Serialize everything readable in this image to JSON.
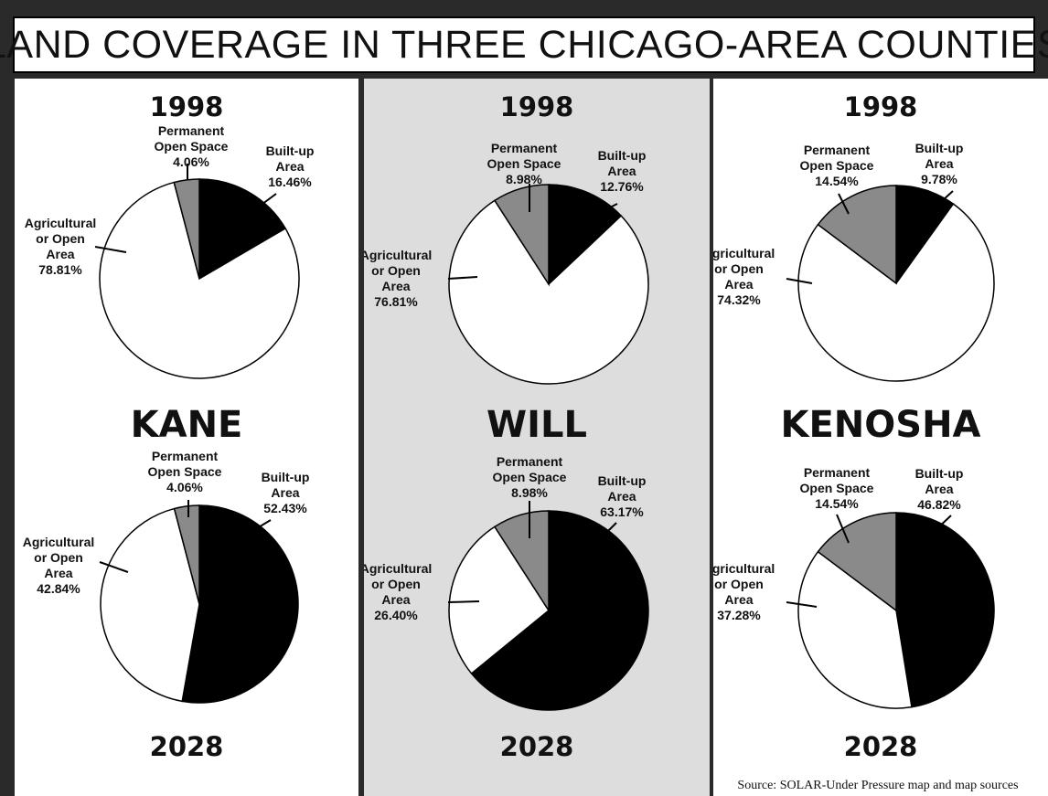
{
  "title": "LAND COVERAGE IN THREE CHICAGO-AREA COUNTIES",
  "source": "Source: SOLAR-Under Pressure map and map sources",
  "colors": {
    "built_up": "#000000",
    "agricultural": "#ffffff",
    "open_space": "#8a8a8a"
  },
  "chart_data": [
    {
      "type": "pie",
      "county": "KANE",
      "year": "1998",
      "labels": [
        "Built-up Area",
        "Agricultural or Open Area",
        "Permanent Open Space"
      ],
      "values": [
        16.46,
        78.81,
        4.06
      ],
      "value_labels": [
        "16.46%",
        "78.81%",
        "4.06%"
      ]
    },
    {
      "type": "pie",
      "county": "KANE",
      "year": "2028",
      "labels": [
        "Built-up Area",
        "Agricultural or Open Area",
        "Permanent Open Space"
      ],
      "values": [
        52.43,
        42.84,
        4.06
      ],
      "value_labels": [
        "52.43%",
        "42.84%",
        "4.06%"
      ]
    },
    {
      "type": "pie",
      "county": "WILL",
      "year": "1998",
      "labels": [
        "Built-up Area",
        "Agricultural or Open Area",
        "Permanent Open Space"
      ],
      "values": [
        12.76,
        76.81,
        8.98
      ],
      "value_labels": [
        "12.76%",
        "76.81%",
        "8.98%"
      ]
    },
    {
      "type": "pie",
      "county": "WILL",
      "year": "2028",
      "labels": [
        "Built-up Area",
        "Agricultural or Open Area",
        "Permanent Open Space"
      ],
      "values": [
        63.17,
        26.4,
        8.98
      ],
      "value_labels": [
        "63.17%",
        "26.40%",
        "8.98%"
      ]
    },
    {
      "type": "pie",
      "county": "KENOSHA",
      "year": "1998",
      "labels": [
        "Built-up Area",
        "Agricultural or Open Area",
        "Permanent Open Space"
      ],
      "values": [
        9.78,
        74.32,
        14.54
      ],
      "value_labels": [
        "9.78%",
        "74.32%",
        "14.54%"
      ]
    },
    {
      "type": "pie",
      "county": "KENOSHA",
      "year": "2028",
      "labels": [
        "Built-up Area",
        "Agricultural or Open Area",
        "Permanent Open Space"
      ],
      "values": [
        46.82,
        37.28,
        14.54
      ],
      "value_labels": [
        "46.82%",
        "37.28%",
        "14.54%"
      ]
    }
  ],
  "label_text": {
    "built": [
      "Built-up",
      "Area"
    ],
    "open": [
      "Permanent",
      "Open Space"
    ],
    "ag": [
      "Agricultural",
      "or Open",
      "Area"
    ]
  }
}
